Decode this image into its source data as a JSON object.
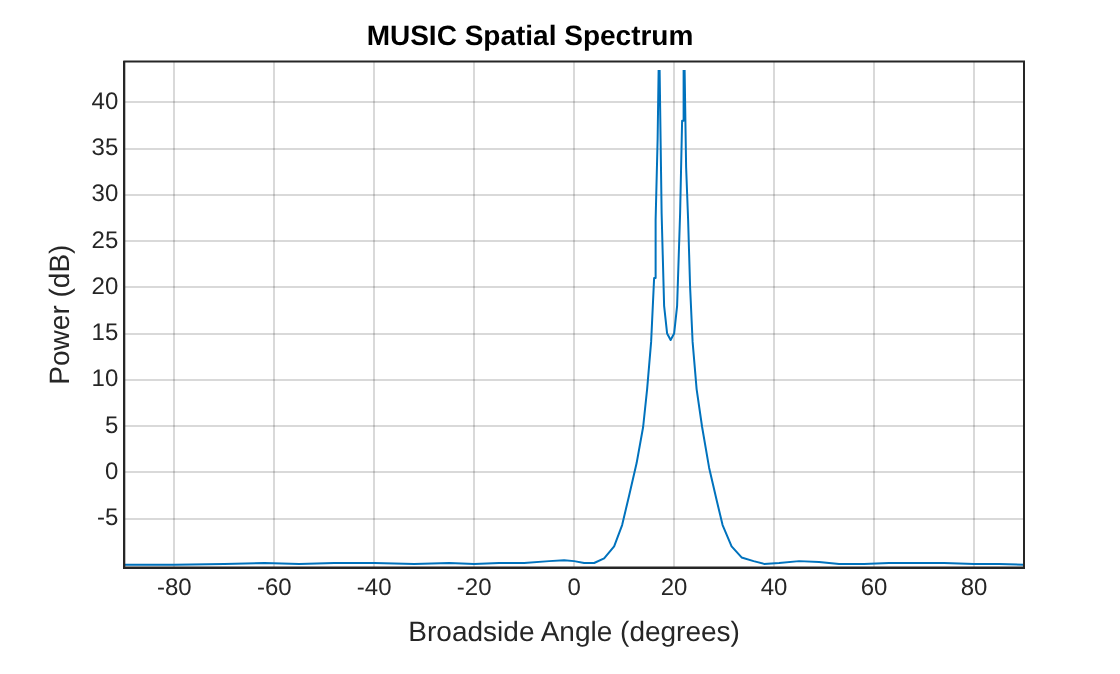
{
  "chart_data": {
    "type": "line",
    "title": "MUSIC Spatial Spectrum",
    "xlabel": "Broadside Angle (degrees)",
    "ylabel": "Power (dB)",
    "x": [
      -90,
      -80,
      -70,
      -62,
      -55,
      -48,
      -40,
      -32,
      -25,
      -20,
      -15,
      -10,
      -5,
      -2,
      0,
      2,
      4,
      6,
      8,
      9.6,
      11,
      12.5,
      13.8,
      14.6,
      15.4,
      16,
      16.3,
      16.7,
      16.9,
      17,
      17.1,
      17.5,
      18,
      18.6,
      19.3,
      20,
      20.6,
      21.2,
      21.6,
      21.9,
      22,
      22.1,
      22.4,
      22.8,
      23.2,
      23.7,
      24.5,
      25.6,
      27,
      28.5,
      29.7,
      31.5,
      33.5,
      35.9,
      38,
      41,
      45,
      49,
      53,
      58,
      63,
      68,
      74,
      80,
      85,
      90
    ],
    "series": [
      {
        "color": "#0072bd",
        "values": [
          -10,
          -10,
          -9.9,
          -9.8,
          -9.9,
          -9.8,
          -9.8,
          -9.9,
          -9.8,
          -9.9,
          -9.8,
          -9.8,
          -9.6,
          -9.5,
          -9.6,
          -9.8,
          -9.8,
          -9.3,
          -8,
          -5.7,
          -2.5,
          1,
          4.9,
          9,
          14.1,
          21,
          27.3,
          36,
          43.5,
          null,
          43.5,
          28,
          18,
          15,
          14.3,
          15,
          18,
          28,
          38,
          43.5,
          null,
          43.5,
          33,
          27.3,
          20,
          14.1,
          9,
          4.9,
          0.5,
          -3,
          -5.7,
          -8,
          -9.2,
          -9.6,
          -9.9,
          -9.8,
          -9.6,
          -9.7,
          -9.9,
          -9.9,
          -9.8,
          -9.8,
          -9.8,
          -9.9,
          -9.9,
          -10
        ]
      }
    ],
    "xlim": [
      -90,
      90
    ],
    "ylim": [
      -10.3,
      44.4
    ],
    "xticks": [
      -80,
      -60,
      -40,
      -20,
      0,
      20,
      40,
      60,
      80
    ],
    "yticks": [
      -5,
      0,
      5,
      10,
      15,
      20,
      25,
      30,
      35,
      40
    ],
    "grid": true,
    "legend": false,
    "marker": "none",
    "line_style": "solid"
  }
}
